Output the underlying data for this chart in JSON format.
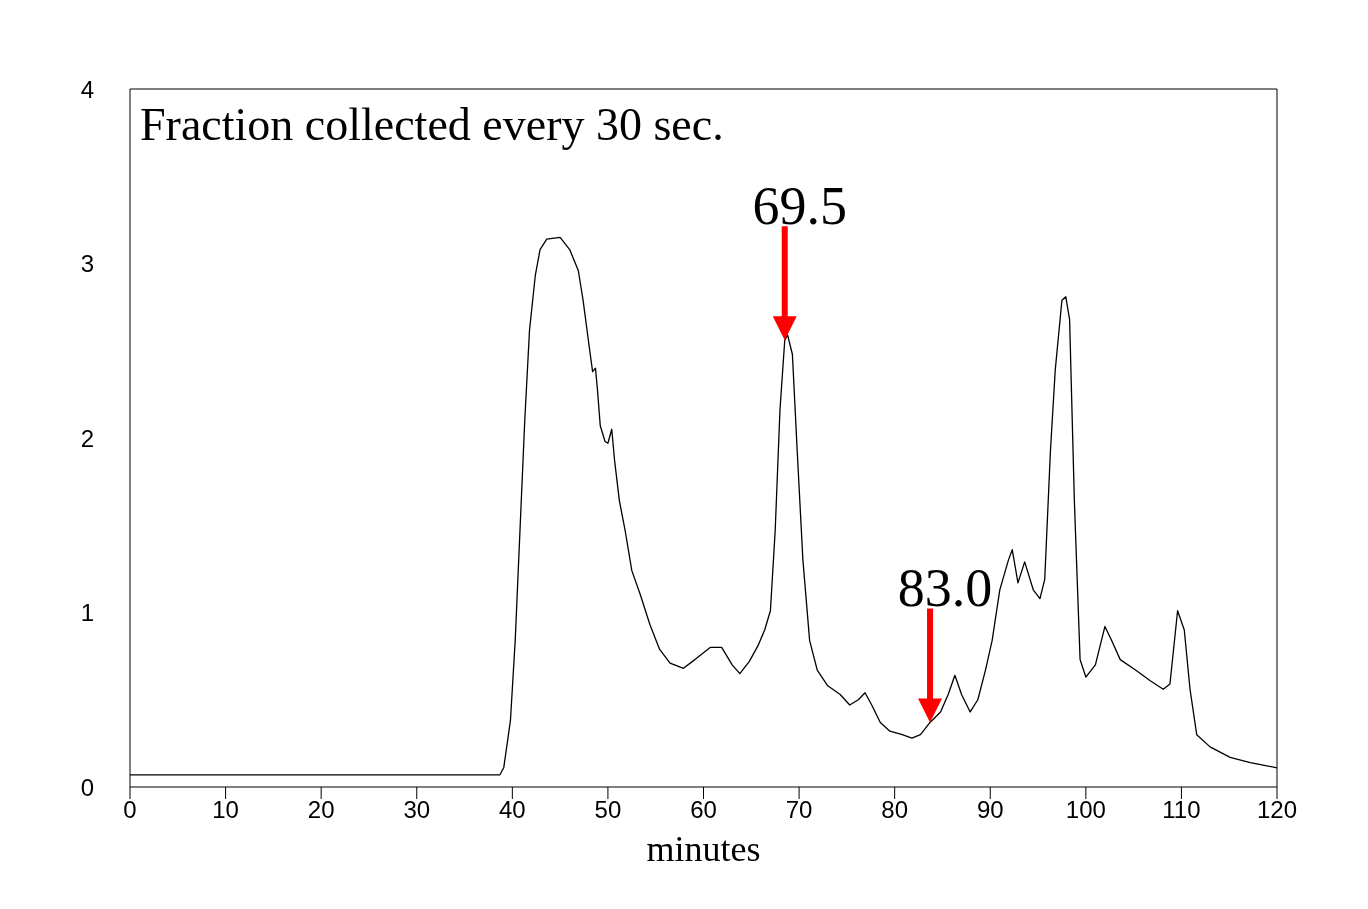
{
  "chart_data": {
    "type": "line",
    "xlabel": "minutes",
    "annotations": [
      "Fraction collected every 30 sec.",
      {
        "text": "69.5",
        "x": 68.5,
        "y": 2.56
      },
      {
        "text": "83.0",
        "x": 83.7,
        "y": 0.37
      }
    ],
    "x": [
      0,
      38.7,
      39.1,
      39.8,
      40.3,
      40.8,
      41.3,
      41.8,
      42.4,
      42.9,
      43.6,
      45.0,
      46.0,
      46.9,
      47.4,
      48.1,
      48.4,
      48.7,
      48.9,
      49.2,
      49.7,
      50.0,
      50.4,
      50.7,
      51.2,
      51.8,
      52.5,
      53.4,
      54.4,
      55.4,
      56.5,
      57.9,
      59.1,
      60.7,
      61.9,
      63.0,
      63.8,
      64.8,
      65.7,
      66.4,
      67.0,
      67.5,
      68.0,
      68.5,
      68.8,
      69.3,
      69.8,
      70.4,
      71.1,
      71.9,
      73.0,
      74.3,
      75.3,
      76.2,
      76.9,
      77.6,
      78.5,
      79.5,
      80.8,
      81.8,
      82.7,
      83.7,
      84.8,
      85.6,
      86.3,
      87.0,
      87.9,
      88.7,
      89.5,
      90.2,
      91.0,
      91.9,
      92.3,
      92.9,
      93.6,
      94.5,
      95.2,
      95.7,
      96.3,
      96.8,
      97.5,
      97.9,
      98.3,
      98.8,
      99.4,
      100.0,
      101.0,
      102.0,
      102.7,
      103.6,
      105.2,
      106.7,
      108.1,
      108.8,
      109.6,
      110.3,
      110.9,
      111.6,
      113.0,
      115.1,
      117.2,
      120.0
    ],
    "series": [
      {
        "color": "#000000",
        "values": [
          0.07,
          0.07,
          0.11,
          0.38,
          0.84,
          1.47,
          2.1,
          2.62,
          2.93,
          3.08,
          3.14,
          3.15,
          3.08,
          2.96,
          2.79,
          2.5,
          2.38,
          2.4,
          2.28,
          2.07,
          1.98,
          1.97,
          2.05,
          1.87,
          1.64,
          1.47,
          1.24,
          1.1,
          0.93,
          0.79,
          0.71,
          0.68,
          0.73,
          0.8,
          0.8,
          0.7,
          0.65,
          0.72,
          0.81,
          0.9,
          1.01,
          1.47,
          2.16,
          2.56,
          2.59,
          2.48,
          1.93,
          1.3,
          0.84,
          0.67,
          0.58,
          0.53,
          0.47,
          0.5,
          0.54,
          0.47,
          0.37,
          0.32,
          0.3,
          0.28,
          0.3,
          0.37,
          0.43,
          0.53,
          0.64,
          0.53,
          0.43,
          0.5,
          0.67,
          0.84,
          1.13,
          1.3,
          1.36,
          1.17,
          1.29,
          1.13,
          1.08,
          1.19,
          1.93,
          2.39,
          2.79,
          2.81,
          2.68,
          1.64,
          0.73,
          0.63,
          0.7,
          0.92,
          0.84,
          0.73,
          0.67,
          0.61,
          0.56,
          0.59,
          1.01,
          0.9,
          0.56,
          0.3,
          0.23,
          0.17,
          0.14,
          0.11
        ]
      }
    ],
    "xlim": [
      0,
      120
    ],
    "xticks": [
      0,
      10,
      20,
      30,
      40,
      50,
      60,
      70,
      80,
      90,
      100,
      110,
      120
    ],
    "ylim": [
      0,
      4
    ],
    "yticks": [
      0,
      1,
      2,
      3,
      4
    ],
    "grid": false,
    "legend": false,
    "marker": "none",
    "line_style": "solid"
  }
}
